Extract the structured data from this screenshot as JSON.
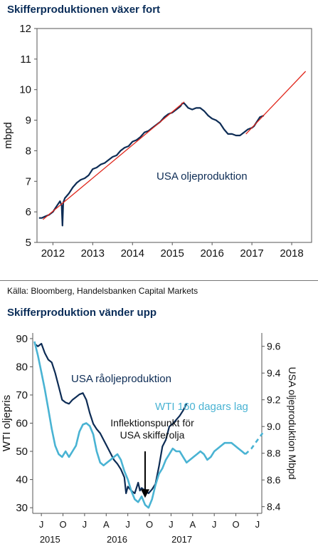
{
  "source": "Källa: Bloomberg, Handelsbanken Capital Markets",
  "colors": {
    "title": "#0a2d59",
    "production": "#0d2c55",
    "trend": "#e0261b",
    "wti": "#49b3d3"
  },
  "chart_data": [
    {
      "type": "line",
      "title": "Skifferproduktionen växer fort",
      "ylabel": "mbpd",
      "xlabel": "",
      "ylim": [
        5,
        12
      ],
      "xlim": [
        2011.6,
        2018.5
      ],
      "xticks": [
        2012,
        2013,
        2014,
        2015,
        2016,
        2017,
        2018
      ],
      "yticks": [
        5,
        6,
        7,
        8,
        9,
        10,
        11,
        12
      ],
      "grid": false,
      "annotation": "USA oljeproduktion",
      "series": [
        {
          "name": "USA oljeproduktion",
          "color": "#0d2c55",
          "x": [
            2011.65,
            2011.72,
            2011.8,
            2011.9,
            2012.0,
            2012.1,
            2012.18,
            2012.22,
            2012.24,
            2012.26,
            2012.3,
            2012.4,
            2012.5,
            2012.6,
            2012.7,
            2012.8,
            2012.9,
            2013.0,
            2013.1,
            2013.2,
            2013.3,
            2013.4,
            2013.5,
            2013.6,
            2013.7,
            2013.8,
            2013.9,
            2014.0,
            2014.1,
            2014.2,
            2014.3,
            2014.4,
            2014.5,
            2014.6,
            2014.7,
            2014.8,
            2014.9,
            2015.0,
            2015.1,
            2015.2,
            2015.25,
            2015.3,
            2015.4,
            2015.5,
            2015.6,
            2015.7,
            2015.8,
            2015.9,
            2016.0,
            2016.1,
            2016.2,
            2016.3,
            2016.4,
            2016.5,
            2016.6,
            2016.7,
            2016.8,
            2016.9,
            2017.0,
            2017.05,
            2017.1,
            2017.15,
            2017.2,
            2017.3
          ],
          "y": [
            5.8,
            5.8,
            5.85,
            5.9,
            6.0,
            6.2,
            6.35,
            6.2,
            5.55,
            6.3,
            6.45,
            6.6,
            6.8,
            6.95,
            7.05,
            7.1,
            7.2,
            7.4,
            7.45,
            7.55,
            7.6,
            7.7,
            7.8,
            7.85,
            8.0,
            8.1,
            8.15,
            8.3,
            8.35,
            8.45,
            8.6,
            8.65,
            8.75,
            8.85,
            8.95,
            9.1,
            9.2,
            9.25,
            9.35,
            9.45,
            9.55,
            9.55,
            9.4,
            9.35,
            9.4,
            9.4,
            9.3,
            9.15,
            9.05,
            9.0,
            8.9,
            8.7,
            8.55,
            8.55,
            8.5,
            8.5,
            8.6,
            8.7,
            8.75,
            8.8,
            8.9,
            9.0,
            9.1,
            9.15
          ]
        },
        {
          "name": "Trend",
          "color": "#e0261b",
          "x": [
            2011.75,
            2015.3
          ],
          "y": [
            5.75,
            9.6
          ],
          "style": "solid"
        },
        {
          "name": "Trend 2",
          "color": "#e0261b",
          "x": [
            2016.85,
            2018.35
          ],
          "y": [
            8.55,
            10.6
          ],
          "style": "solid"
        }
      ]
    },
    {
      "type": "line",
      "title": "Skifferproduktion vänder upp",
      "ylabel": "WTI oljepris",
      "y2label": "USA oljeproduktion Mbpd",
      "ylim": [
        28,
        92
      ],
      "y2lim": [
        8.35,
        9.7
      ],
      "yticks": [
        30,
        40,
        50,
        60,
        70,
        80,
        90
      ],
      "y2ticks": [
        8.4,
        8.6,
        8.8,
        9.0,
        9.2,
        9.4,
        9.6
      ],
      "xlim": [
        2015.4,
        2018.05
      ],
      "month_labels": [
        "J",
        "O",
        "J",
        "A",
        "J",
        "O",
        "J",
        "A",
        "J",
        "O",
        "J"
      ],
      "month_x": [
        2015.5,
        2015.75,
        2016.0,
        2016.25,
        2016.5,
        2016.75,
        2017.0,
        2017.25,
        2017.5,
        2017.75,
        2018.0
      ],
      "year_labels": [
        "2015",
        "2016",
        "2017"
      ],
      "year_x": [
        2015.6,
        2016.375,
        2017.125
      ],
      "grid": false,
      "annotations": [
        "USA råoljeproduktion",
        "WTI 160 dagars lag",
        "Inflektionspunkt för\nUSA skifferolja"
      ],
      "annotation_arrow": {
        "x": 2016.7,
        "y_from": 50,
        "y_to": 34
      },
      "series": [
        {
          "name": "USA råoljeproduktion",
          "axis": "right",
          "color": "#0d2c55",
          "x": [
            2015.42,
            2015.46,
            2015.5,
            2015.54,
            2015.58,
            2015.62,
            2015.66,
            2015.7,
            2015.74,
            2015.78,
            2015.82,
            2015.86,
            2015.9,
            2015.94,
            2015.98,
            2016.02,
            2016.06,
            2016.1,
            2016.14,
            2016.18,
            2016.22,
            2016.26,
            2016.3,
            2016.34,
            2016.38,
            2016.42,
            2016.46,
            2016.48,
            2016.5,
            2016.54,
            2016.58,
            2016.62,
            2016.64,
            2016.66,
            2016.7,
            2016.74,
            2016.78,
            2016.82,
            2016.86,
            2016.9,
            2016.94,
            2016.98,
            2017.02,
            2017.06,
            2017.1,
            2017.14,
            2017.18
          ],
          "y": [
            9.62,
            9.6,
            9.62,
            9.55,
            9.5,
            9.48,
            9.4,
            9.3,
            9.2,
            9.18,
            9.17,
            9.2,
            9.22,
            9.24,
            9.25,
            9.2,
            9.1,
            9.02,
            8.98,
            8.95,
            8.9,
            8.85,
            8.8,
            8.75,
            8.72,
            8.68,
            8.62,
            8.5,
            8.55,
            8.52,
            8.5,
            8.58,
            8.52,
            8.54,
            8.52,
            8.5,
            8.53,
            8.57,
            8.7,
            8.85,
            8.9,
            9.0,
            9.02,
            9.05,
            9.08,
            9.12,
            9.17
          ]
        },
        {
          "name": "WTI 160 dagars lag",
          "axis": "left",
          "color": "#49b3d3",
          "x": [
            2015.42,
            2015.46,
            2015.5,
            2015.54,
            2015.58,
            2015.62,
            2015.66,
            2015.7,
            2015.74,
            2015.78,
            2015.82,
            2015.86,
            2015.9,
            2015.94,
            2015.98,
            2016.02,
            2016.06,
            2016.1,
            2016.14,
            2016.18,
            2016.22,
            2016.26,
            2016.3,
            2016.34,
            2016.38,
            2016.42,
            2016.46,
            2016.5,
            2016.54,
            2016.58,
            2016.62,
            2016.66,
            2016.7,
            2016.74,
            2016.78,
            2016.82,
            2016.86,
            2016.9,
            2016.94,
            2016.98,
            2017.02,
            2017.06,
            2017.1,
            2017.14,
            2017.18,
            2017.22,
            2017.26,
            2017.3,
            2017.34,
            2017.38,
            2017.42,
            2017.46,
            2017.5,
            2017.54,
            2017.58,
            2017.62,
            2017.66,
            2017.7,
            2017.74,
            2017.78,
            2017.82,
            2017.86
          ],
          "y": [
            89,
            84,
            78,
            72,
            65,
            58,
            52,
            49,
            48,
            50,
            48,
            50,
            52,
            57,
            59.5,
            60,
            59,
            56,
            50,
            46,
            45,
            46,
            47,
            48,
            49,
            47,
            43,
            40,
            36,
            33,
            32,
            34,
            31,
            30,
            33,
            38,
            42,
            44,
            47,
            49,
            51,
            50,
            50,
            48,
            46,
            47,
            48,
            49,
            50,
            49,
            47,
            48,
            50,
            51,
            52,
            53,
            53,
            53,
            52,
            51,
            50,
            49
          ]
        },
        {
          "name": "WTI 160 dagars lag (prognos)",
          "axis": "left",
          "color": "#49b3d3",
          "style": "dashed",
          "x": [
            2017.86,
            2017.93,
            2018.0,
            2018.06
          ],
          "y": [
            49,
            51,
            54,
            56.5
          ]
        }
      ]
    }
  ]
}
